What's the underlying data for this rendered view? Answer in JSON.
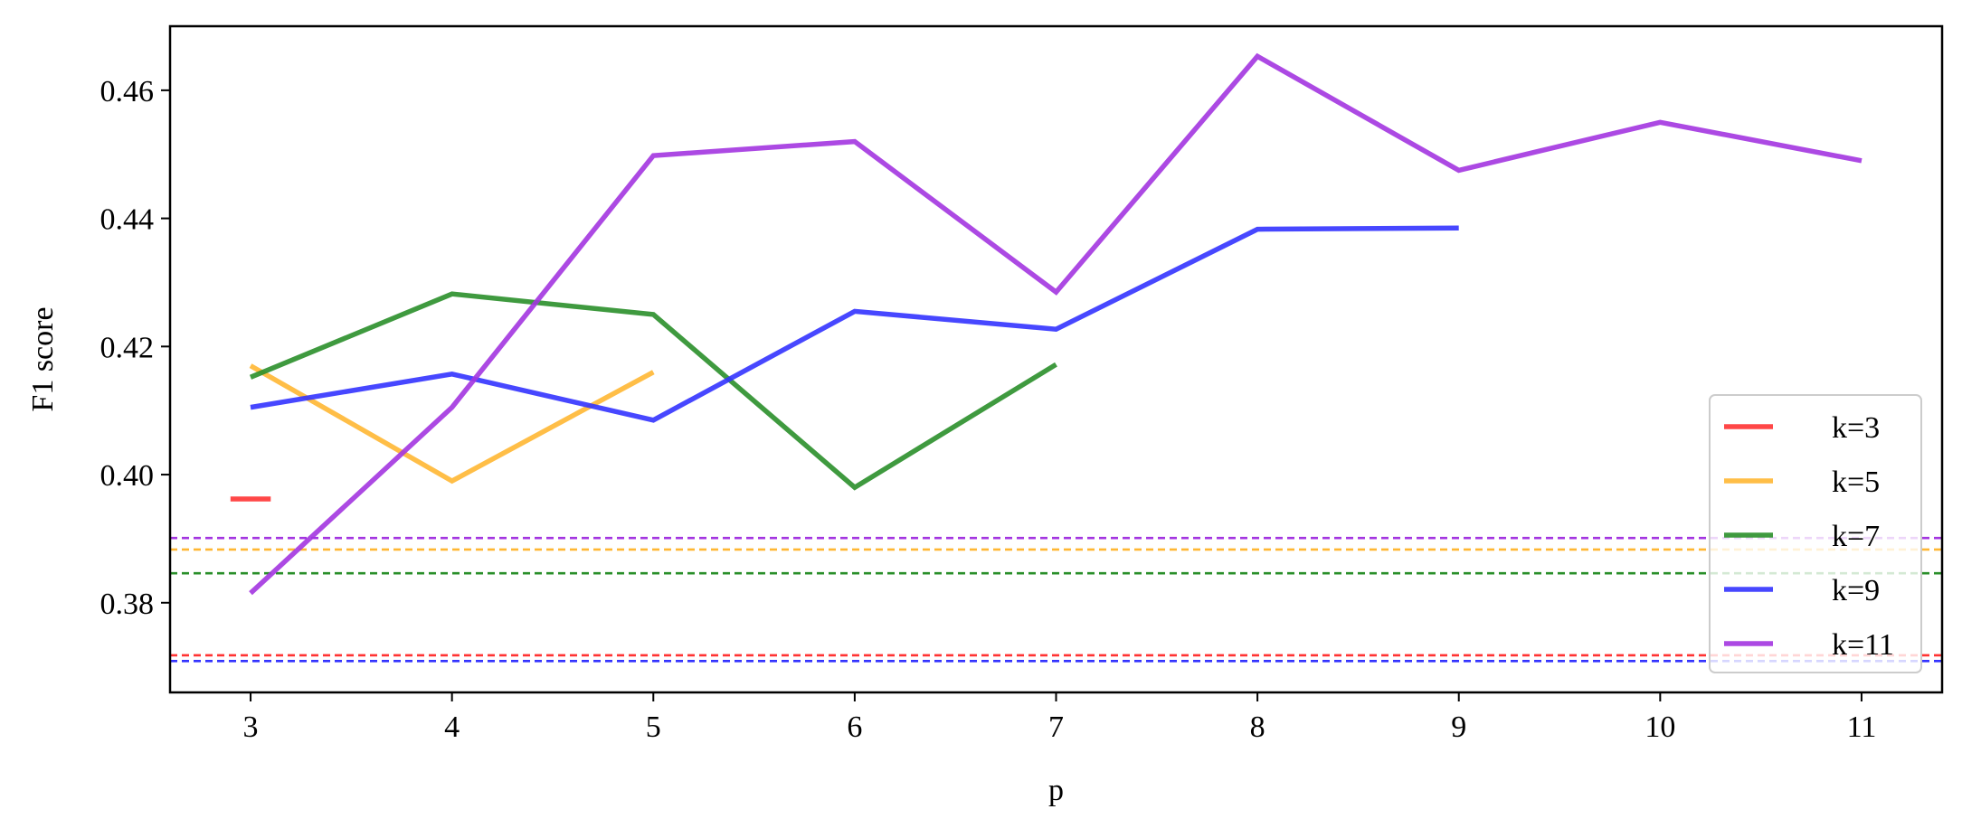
{
  "chart_data": {
    "type": "line",
    "title": "",
    "xlabel": "p",
    "ylabel": "F1 score",
    "xlim": [
      2.6,
      11.4
    ],
    "ylim": [
      0.366,
      0.47
    ],
    "xticks": [
      3,
      4,
      5,
      6,
      7,
      8,
      9,
      10,
      11
    ],
    "yticks": [
      0.38,
      0.4,
      0.42,
      0.44,
      0.46
    ],
    "ytick_labels": [
      "0.38",
      "0.40",
      "0.42",
      "0.44",
      "0.46"
    ],
    "grid": false,
    "legend_position": "lower-right",
    "series": [
      {
        "name": "k=3",
        "color": "#ff3333",
        "x": [
          2.9,
          3.1
        ],
        "y": [
          0.3962,
          0.3962
        ]
      },
      {
        "name": "k=5",
        "color": "#ffb733",
        "x": [
          3,
          4,
          5
        ],
        "y": [
          0.417,
          0.399,
          0.416
        ]
      },
      {
        "name": "k=7",
        "color": "#2a8f2a",
        "x": [
          3,
          4,
          5,
          6,
          7
        ],
        "y": [
          0.4152,
          0.4282,
          0.425,
          0.398,
          0.4172
        ]
      },
      {
        "name": "k=9",
        "color": "#3333ff",
        "x": [
          3,
          4,
          5,
          6,
          7,
          8,
          9
        ],
        "y": [
          0.4105,
          0.4157,
          0.4085,
          0.4255,
          0.4227,
          0.4383,
          0.4385
        ]
      },
      {
        "name": "k=11",
        "color": "#a335e0",
        "x": [
          3,
          4,
          5,
          6,
          7,
          8,
          9,
          10,
          11
        ],
        "y": [
          0.3815,
          0.4105,
          0.4498,
          0.452,
          0.4285,
          0.4653,
          0.4475,
          0.455,
          0.449
        ]
      }
    ],
    "baselines": [
      {
        "color": "#a335e0",
        "y": 0.3901
      },
      {
        "color": "#ffb733",
        "y": 0.3883
      },
      {
        "color": "#2a8f2a",
        "y": 0.3846
      },
      {
        "color": "#ff3333",
        "y": 0.3718
      },
      {
        "color": "#3333ff",
        "y": 0.3709
      }
    ]
  }
}
